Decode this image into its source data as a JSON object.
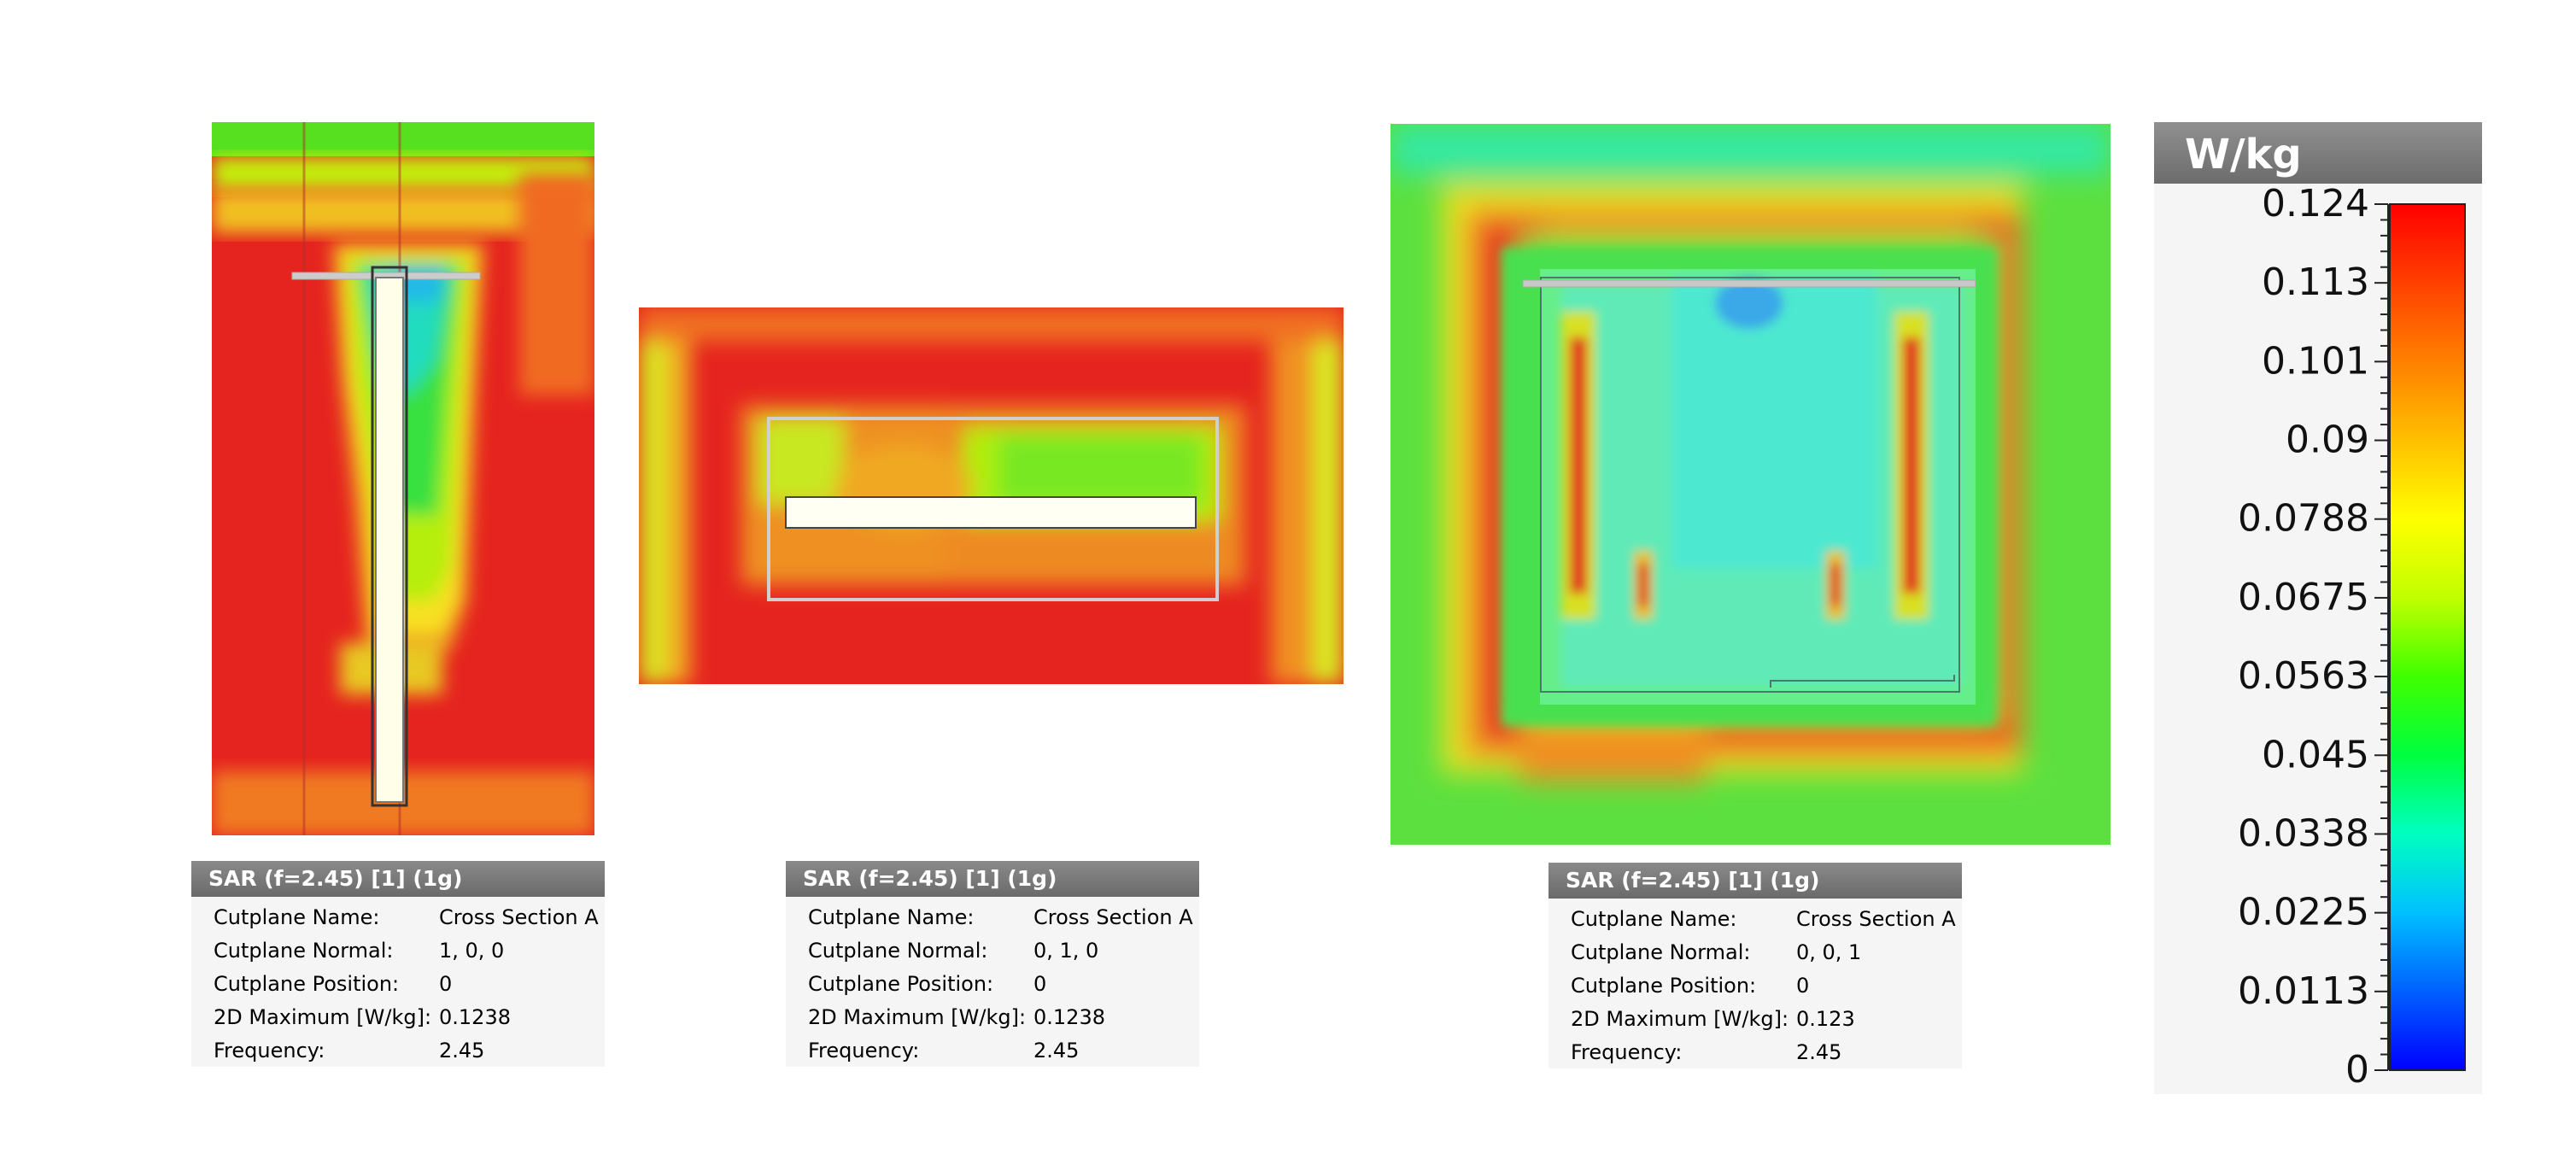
{
  "views": [
    {
      "header": "SAR (f=2.45) [1] (1g)",
      "rows": [
        {
          "label": "Cutplane Name:",
          "value": "Cross Section A"
        },
        {
          "label": "Cutplane Normal:",
          "value": "1, 0, 0"
        },
        {
          "label": "Cutplane Position:",
          "value": "0"
        },
        {
          "label": "2D Maximum [W/kg]:",
          "value": "0.1238"
        },
        {
          "label": "Frequency:",
          "value": "2.45"
        }
      ]
    },
    {
      "header": "SAR (f=2.45) [1] (1g)",
      "rows": [
        {
          "label": "Cutplane Name:",
          "value": "Cross Section A"
        },
        {
          "label": "Cutplane Normal:",
          "value": "0, 1, 0"
        },
        {
          "label": "Cutplane Position:",
          "value": "0"
        },
        {
          "label": "2D Maximum [W/kg]:",
          "value": "0.1238"
        },
        {
          "label": "Frequency:",
          "value": "2.45"
        }
      ]
    },
    {
      "header": "SAR (f=2.45) [1] (1g)",
      "rows": [
        {
          "label": "Cutplane Name:",
          "value": "Cross Section A"
        },
        {
          "label": "Cutplane Normal:",
          "value": "0, 0, 1"
        },
        {
          "label": "Cutplane Position:",
          "value": "0"
        },
        {
          "label": "2D Maximum [W/kg]:",
          "value": "0.123"
        },
        {
          "label": "Frequency:",
          "value": "2.45"
        }
      ]
    }
  ],
  "legend": {
    "unit": "W/kg",
    "ticks": [
      "0.124",
      "0.113",
      "0.101",
      "0.09",
      "0.0788",
      "0.0675",
      "0.0563",
      "0.045",
      "0.0338",
      "0.0225",
      "0.0113",
      "0"
    ],
    "colors": [
      "#ff0000",
      "#ff4000",
      "#ff8000",
      "#ffc000",
      "#ffff00",
      "#c0ff00",
      "#40ff00",
      "#00ff40",
      "#00ffc0",
      "#00c0ff",
      "#0060ff",
      "#0000ff"
    ]
  }
}
